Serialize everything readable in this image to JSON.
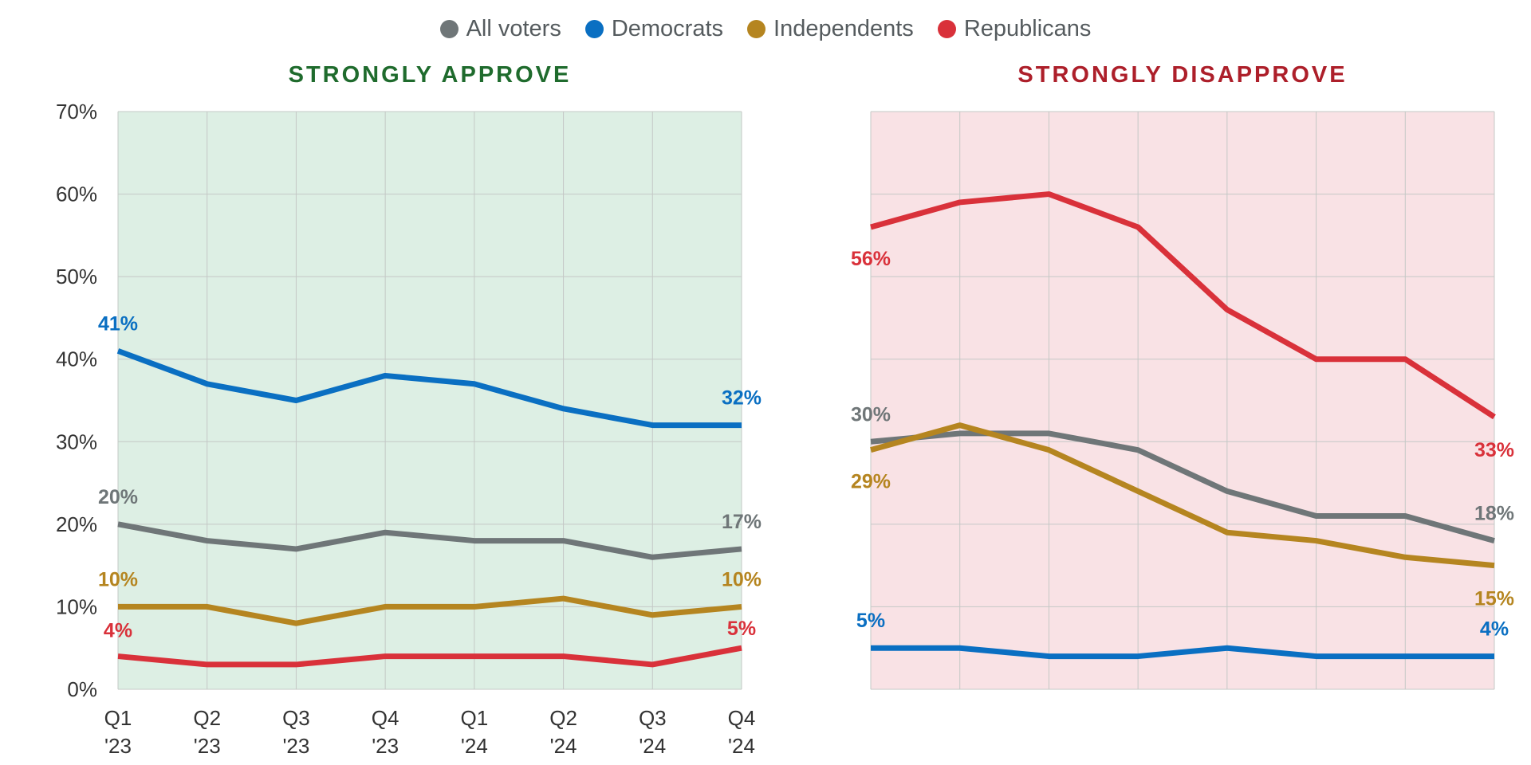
{
  "legend": [
    {
      "label": "All voters",
      "color": "#6f7678"
    },
    {
      "label": "Democrats",
      "color": "#0a6fc2"
    },
    {
      "label": "Independents",
      "color": "#b58520"
    },
    {
      "label": "Republicans",
      "color": "#d9313a"
    }
  ],
  "chart_data": [
    {
      "type": "line",
      "title": "STRONGLY APPROVE",
      "title_color": "#1f6b2d",
      "background": "#ddefe4",
      "categories": [
        "Q1 '23",
        "Q2 '23",
        "Q3 '23",
        "Q4 '23",
        "Q1 '24",
        "Q2 '24",
        "Q3 '24",
        "Q4 '24"
      ],
      "ylim": [
        0,
        70
      ],
      "yticks": [
        0,
        10,
        20,
        30,
        40,
        50,
        60,
        70
      ],
      "ytick_labels": [
        "0%",
        "10%",
        "20%",
        "30%",
        "40%",
        "50%",
        "60%",
        "70%"
      ],
      "xtick_labels": [
        [
          "Q1",
          "'23"
        ],
        [
          "Q2",
          "'23"
        ],
        [
          "Q3",
          "'23"
        ],
        [
          "Q4",
          "'23"
        ],
        [
          "Q1",
          "'24"
        ],
        [
          "Q2",
          "'24"
        ],
        [
          "Q3",
          "'24"
        ],
        [
          "Q4",
          "'24"
        ]
      ],
      "grid": true,
      "series": [
        {
          "name": "All voters",
          "color": "#6f7678",
          "values": [
            20,
            18,
            17,
            19,
            18,
            18,
            16,
            17
          ],
          "start_label": "20%",
          "end_label": "17%"
        },
        {
          "name": "Democrats",
          "color": "#0a6fc2",
          "values": [
            41,
            37,
            35,
            38,
            37,
            34,
            32,
            32
          ],
          "start_label": "41%",
          "end_label": "32%"
        },
        {
          "name": "Independents",
          "color": "#b58520",
          "values": [
            10,
            10,
            8,
            10,
            10,
            11,
            9,
            10
          ],
          "start_label": "10%",
          "end_label": "10%"
        },
        {
          "name": "Republicans",
          "color": "#d9313a",
          "values": [
            4,
            3,
            3,
            4,
            4,
            4,
            3,
            5
          ],
          "start_label": "4%",
          "end_label": "5%"
        }
      ]
    },
    {
      "type": "line",
      "title": "STRONGLY DISAPPROVE",
      "title_color": "#ad1f2a",
      "background": "#f9e2e5",
      "categories": [
        "Q1 '23",
        "Q2 '23",
        "Q3 '23",
        "Q4 '23",
        "Q1 '24",
        "Q2 '24",
        "Q3 '24",
        "Q4 '24"
      ],
      "ylim": [
        0,
        70
      ],
      "yticks": [
        0,
        10,
        20,
        30,
        40,
        50,
        60,
        70
      ],
      "grid": true,
      "series": [
        {
          "name": "All voters",
          "color": "#6f7678",
          "values": [
            30,
            31,
            31,
            29,
            24,
            21,
            21,
            18
          ],
          "start_label": "30%",
          "end_label": "18%"
        },
        {
          "name": "Democrats",
          "color": "#0a6fc2",
          "values": [
            5,
            5,
            4,
            4,
            5,
            4,
            4,
            4
          ],
          "start_label": "5%",
          "end_label": "4%"
        },
        {
          "name": "Independents",
          "color": "#b58520",
          "values": [
            29,
            32,
            29,
            24,
            19,
            18,
            16,
            15
          ],
          "start_label": "29%",
          "end_label": "15%"
        },
        {
          "name": "Republicans",
          "color": "#d9313a",
          "values": [
            56,
            59,
            60,
            56,
            46,
            40,
            40,
            33
          ],
          "start_label": "56%",
          "end_label": "33%"
        }
      ]
    }
  ]
}
